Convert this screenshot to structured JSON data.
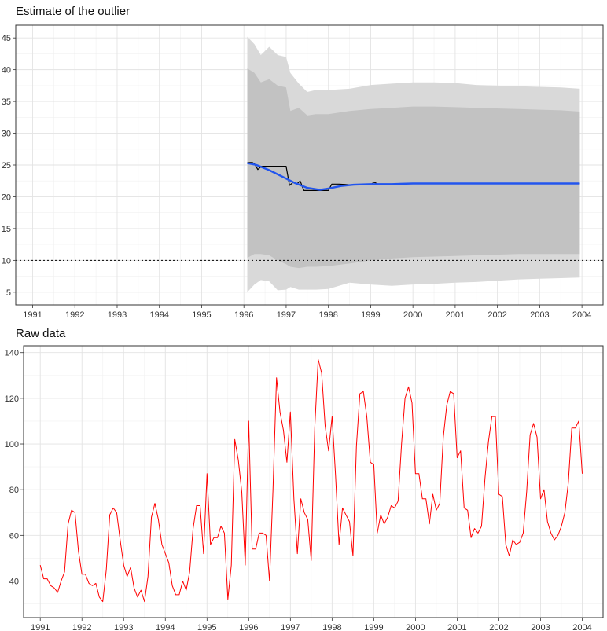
{
  "chart_data": [
    {
      "type": "line",
      "title": "Estimate of the outlier",
      "xlabel": "",
      "ylabel": "",
      "xlim": [
        1990.6,
        2004.5
      ],
      "ylim": [
        3,
        47
      ],
      "x_ticks": [
        "1991",
        "1992",
        "1993",
        "1994",
        "1995",
        "1996",
        "1997",
        "1998",
        "1999",
        "2000",
        "2001",
        "2002",
        "2003",
        "2004"
      ],
      "y_ticks": [
        5,
        10,
        15,
        20,
        25,
        30,
        35,
        40,
        45
      ],
      "grid": true,
      "reference_line": {
        "y": 10,
        "style": "dotted"
      },
      "outer_band": {
        "x": [
          1996.08,
          1996.25,
          1996.4,
          1996.6,
          1996.8,
          1997.0,
          1997.1,
          1997.3,
          1997.5,
          1997.7,
          1998.0,
          1998.5,
          1999.0,
          1999.5,
          2000.0,
          2000.5,
          2001.0,
          2001.5,
          2002.0,
          2002.5,
          2003.0,
          2003.5,
          2003.95
        ],
        "upper": [
          45.2,
          44.0,
          42.3,
          43.6,
          42.3,
          42.0,
          39.5,
          37.8,
          36.5,
          36.8,
          36.8,
          37.0,
          37.6,
          37.8,
          38.0,
          38.0,
          37.9,
          37.6,
          37.5,
          37.4,
          37.3,
          37.2,
          37.0
        ],
        "lower": [
          5.0,
          6.2,
          6.9,
          6.7,
          5.3,
          5.4,
          5.8,
          5.4,
          5.4,
          5.4,
          5.5,
          6.5,
          6.2,
          6.0,
          6.2,
          6.3,
          6.5,
          6.6,
          6.8,
          7.0,
          7.1,
          7.2,
          7.3
        ]
      },
      "inner_band": {
        "x": [
          1996.08,
          1996.25,
          1996.4,
          1996.6,
          1996.8,
          1997.0,
          1997.1,
          1997.3,
          1997.5,
          1997.7,
          1998.0,
          1998.5,
          1999.0,
          1999.5,
          2000.0,
          2000.5,
          2001.0,
          2001.5,
          2002.0,
          2002.5,
          2003.0,
          2003.5,
          2003.95
        ],
        "upper": [
          40.2,
          39.5,
          38.0,
          38.5,
          37.5,
          37.2,
          33.5,
          34.0,
          32.8,
          33.0,
          33.0,
          33.5,
          33.8,
          34.0,
          34.2,
          34.2,
          34.1,
          34.0,
          33.9,
          33.8,
          33.7,
          33.6,
          33.4
        ],
        "lower": [
          10.4,
          11.0,
          11.0,
          10.8,
          10.0,
          9.4,
          9.0,
          8.8,
          9.0,
          9.0,
          9.1,
          9.5,
          10.0,
          10.3,
          10.5,
          10.6,
          10.7,
          10.8,
          10.9,
          11.0,
          11.0,
          11.0,
          11.0
        ]
      },
      "series": [
        {
          "name": "",
          "color": "#000000",
          "x": [
            1996.08,
            1996.2,
            1996.25,
            1996.33,
            1996.42,
            1996.5,
            1996.67,
            1996.83,
            1997.0,
            1997.08,
            1997.17,
            1997.25,
            1997.33,
            1997.42,
            1997.5,
            1997.67,
            1997.83,
            1998.0,
            1998.08,
            1998.25,
            1998.5,
            1998.75,
            1999.0,
            1999.08,
            1999.17,
            1999.5,
            2000.0,
            2000.5,
            2001.0,
            2001.5,
            2002.0,
            2002.5,
            2003.0,
            2003.5,
            2003.95
          ],
          "values": [
            25.4,
            25.4,
            25.2,
            24.3,
            24.8,
            24.8,
            24.8,
            24.8,
            24.8,
            21.8,
            22.3,
            22.0,
            22.5,
            21.0,
            21.0,
            21.0,
            21.0,
            21.0,
            22.0,
            22.0,
            21.9,
            21.9,
            21.9,
            22.3,
            22.0,
            22.0,
            22.1,
            22.1,
            22.1,
            22.1,
            22.1,
            22.1,
            22.1,
            22.1,
            22.1
          ]
        },
        {
          "name": "",
          "color": "#2255ee",
          "x": [
            1996.08,
            1996.3,
            1996.6,
            1996.9,
            1997.2,
            1997.5,
            1997.8,
            1998.0,
            1998.3,
            1998.6,
            1999.0,
            1999.5,
            2000.0,
            2001.0,
            2002.0,
            2003.0,
            2003.95
          ],
          "values": [
            25.3,
            25.0,
            24.2,
            23.2,
            22.2,
            21.4,
            21.1,
            21.3,
            21.7,
            21.9,
            22.0,
            22.0,
            22.1,
            22.1,
            22.1,
            22.1,
            22.1
          ]
        }
      ]
    },
    {
      "type": "line",
      "title": "Raw data",
      "xlabel": "",
      "ylabel": "",
      "xlim": [
        1990.6,
        2004.5
      ],
      "ylim": [
        24,
        143
      ],
      "x_ticks": [
        "1991",
        "1992",
        "1993",
        "1994",
        "1995",
        "1996",
        "1997",
        "1998",
        "1999",
        "2000",
        "2001",
        "2002",
        "2003",
        "2004"
      ],
      "y_ticks": [
        40,
        60,
        80,
        100,
        120,
        140
      ],
      "grid": true,
      "x_start": 1991.0,
      "x_step": 0.08333333,
      "series": [
        {
          "name": "",
          "color": "#ff0000",
          "values": [
            47,
            41,
            41,
            38,
            37,
            35,
            40,
            44,
            65,
            71,
            70,
            53,
            43,
            43,
            39,
            38,
            39,
            33,
            31,
            45,
            69,
            72,
            70,
            58,
            47,
            42,
            46,
            37,
            33,
            36,
            31,
            42,
            68,
            74,
            67,
            56,
            52,
            48,
            38,
            34,
            34,
            40,
            36,
            44,
            63,
            73,
            73,
            52,
            87,
            56,
            59,
            59,
            64,
            61,
            32,
            47,
            102,
            93,
            79,
            47,
            110,
            54,
            54,
            61,
            61,
            60,
            40,
            80,
            129,
            114,
            106,
            92,
            114,
            76,
            52,
            76,
            70,
            67,
            49,
            107,
            137,
            131,
            108,
            97,
            112,
            86,
            56,
            72,
            69,
            66,
            51,
            99,
            122,
            123,
            112,
            92,
            91,
            61,
            69,
            65,
            68,
            73,
            72,
            75,
            100,
            120,
            125,
            118,
            87,
            87,
            76,
            76,
            65,
            78,
            71,
            74,
            103,
            117,
            123,
            122,
            94,
            97,
            72,
            71,
            59,
            63,
            61,
            64,
            85,
            101,
            112,
            112,
            78,
            77,
            56,
            51,
            58,
            56,
            57,
            61,
            79,
            104,
            109,
            103,
            76,
            80,
            66,
            61,
            58,
            60,
            64,
            70,
            83,
            107,
            107,
            110,
            87
          ]
        }
      ]
    }
  ]
}
